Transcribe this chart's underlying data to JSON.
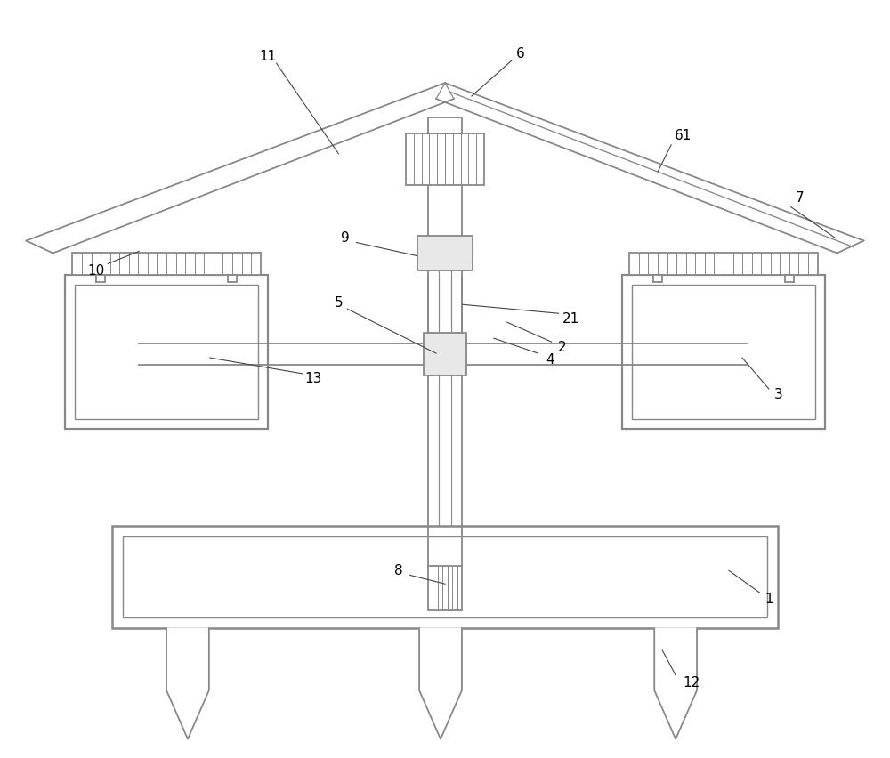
{
  "bg_color": "#ffffff",
  "lc": "#888888",
  "dc": "#444444",
  "label_color": "#000000",
  "fig_width": 10.0,
  "fig_height": 8.52
}
